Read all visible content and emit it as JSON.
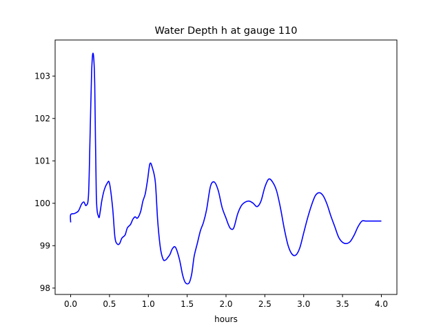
{
  "chart_data": {
    "type": "line",
    "title": "Water Depth h at gauge 110",
    "xlabel": "hours",
    "ylabel": "",
    "xlim": [
      -0.2,
      4.2
    ],
    "ylim": [
      97.85,
      103.85
    ],
    "xticks": [
      0.0,
      0.5,
      1.0,
      1.5,
      2.0,
      2.5,
      3.0,
      3.5,
      4.0
    ],
    "xtick_labels": [
      "0.0",
      "0.5",
      "1.0",
      "1.5",
      "2.0",
      "2.5",
      "3.0",
      "3.5",
      "4.0"
    ],
    "yticks": [
      98,
      99,
      100,
      101,
      102,
      103
    ],
    "ytick_labels": [
      "98",
      "99",
      "100",
      "101",
      "102",
      "103"
    ],
    "grid": false,
    "legend": "none",
    "colors": {
      "line": "#0000ff",
      "axes": "#000000",
      "background": "#ffffff"
    },
    "series": [
      {
        "x": [
          0.0,
          0.0,
          0.05,
          0.1,
          0.14,
          0.17,
          0.2,
          0.23,
          0.25,
          0.27,
          0.29,
          0.31,
          0.33,
          0.36,
          0.38,
          0.4,
          0.43,
          0.47,
          0.5,
          0.54,
          0.57,
          0.6,
          0.63,
          0.66,
          0.7,
          0.73,
          0.77,
          0.8,
          0.83,
          0.86,
          0.9,
          0.93,
          0.96,
          0.99,
          1.02,
          1.05,
          1.09,
          1.12,
          1.155,
          1.19,
          1.22,
          1.25,
          1.28,
          1.31,
          1.35,
          1.4,
          1.44,
          1.47,
          1.5,
          1.53,
          1.56,
          1.59,
          1.63,
          1.67,
          1.71,
          1.75,
          1.8,
          1.85,
          1.9,
          1.95,
          2.0,
          2.03,
          2.06,
          2.1,
          2.15,
          2.2,
          2.25,
          2.3,
          2.35,
          2.4,
          2.45,
          2.5,
          2.55,
          2.6,
          2.65,
          2.7,
          2.75,
          2.8,
          2.85,
          2.9,
          2.95,
          3.0,
          3.05,
          3.1,
          3.15,
          3.2,
          3.25,
          3.3,
          3.35,
          3.4,
          3.45,
          3.5,
          3.55,
          3.6,
          3.65,
          3.7,
          3.75,
          3.8,
          3.85,
          3.9,
          3.95,
          4.0
        ],
        "y": [
          99.55,
          99.73,
          99.76,
          99.82,
          99.98,
          100.03,
          99.95,
          100.2,
          101.6,
          103.1,
          103.53,
          102.8,
          100.2,
          99.68,
          99.8,
          100.05,
          100.3,
          100.47,
          100.47,
          99.9,
          99.2,
          99.04,
          99.05,
          99.18,
          99.25,
          99.42,
          99.5,
          99.62,
          99.68,
          99.65,
          99.8,
          100.05,
          100.22,
          100.55,
          100.93,
          100.85,
          100.5,
          99.6,
          98.95,
          98.68,
          98.66,
          98.72,
          98.8,
          98.93,
          98.96,
          98.68,
          98.32,
          98.15,
          98.1,
          98.14,
          98.35,
          98.75,
          99.05,
          99.35,
          99.55,
          99.85,
          100.4,
          100.5,
          100.3,
          99.9,
          99.65,
          99.5,
          99.4,
          99.42,
          99.75,
          99.95,
          100.03,
          100.05,
          100.0,
          99.92,
          100.05,
          100.38,
          100.57,
          100.5,
          100.3,
          99.9,
          99.4,
          99.0,
          98.8,
          98.78,
          98.95,
          99.3,
          99.65,
          99.95,
          100.18,
          100.25,
          100.18,
          99.98,
          99.7,
          99.45,
          99.2,
          99.08,
          99.05,
          99.1,
          99.25,
          99.45,
          99.58,
          99.58,
          99.58,
          99.58,
          99.58,
          99.58
        ]
      }
    ]
  }
}
